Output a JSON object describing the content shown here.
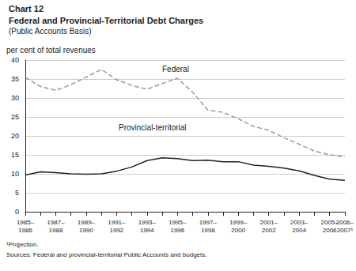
{
  "chart_data": {
    "type": "line",
    "title": "Chart 12",
    "subtitle": [
      "Federal and Provincial-Territorial Debt Charges",
      "(Public Accounts Basis)"
    ],
    "y_label": "per cent of total revenues",
    "categories": [
      "1985–\n1986",
      null,
      "1987–\n1988",
      null,
      "1989–\n1990",
      null,
      "1991–\n1992",
      null,
      "1993–\n1994",
      null,
      "1995–\n1996",
      null,
      "1997–\n1998",
      null,
      "1999–\n2000",
      null,
      "2001–\n2002",
      null,
      "2003–\n2004",
      null,
      "2005–\n2006",
      "2006–\n2007¹"
    ],
    "series": [
      {
        "name": "Federal",
        "color": "#999999",
        "line_style": "dashed",
        "values": [
          35.5,
          33,
          32,
          33.5,
          35.5,
          37.5,
          34.8,
          33.3,
          32.3,
          33.8,
          35.2,
          31.5,
          26.8,
          26.2,
          24.5,
          22.5,
          21.5,
          19.5,
          17.8,
          16,
          15,
          14.5
        ]
      },
      {
        "name": "Provincial-territorial",
        "color": "#222222",
        "line_style": "solid",
        "values": [
          9.7,
          10.5,
          10.3,
          10,
          9.9,
          10,
          10.7,
          11.8,
          13.5,
          14.2,
          14,
          13.5,
          13.6,
          13.2,
          13.2,
          12.3,
          12,
          11.5,
          10.8,
          9.6,
          8.6,
          8.3
        ]
      }
    ],
    "ylim": [
      0,
      40
    ],
    "yticks": [
      0,
      5,
      10,
      15,
      20,
      25,
      30,
      35,
      40
    ],
    "grid": true,
    "notes": [
      "¹Projection.",
      "Sources: Federal and provincial-territorial Public Accounts and budgets."
    ]
  }
}
